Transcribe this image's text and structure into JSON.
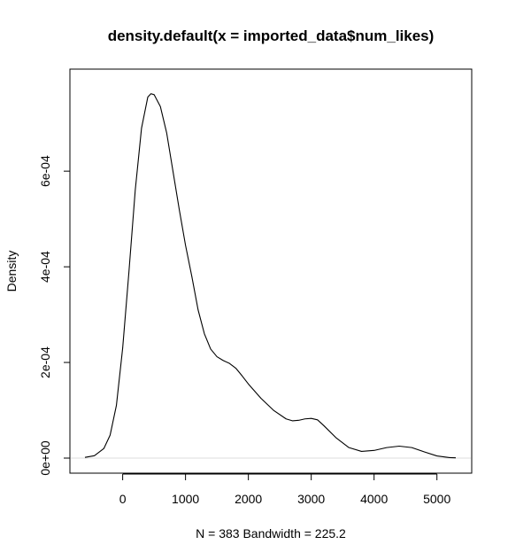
{
  "chart_data": {
    "type": "line",
    "title": "density.default(x = imported_data$num_likes)",
    "xlabel": "N = 383   Bandwidth = 225.2",
    "ylabel": "Density",
    "xlim": [
      -600,
      5300
    ],
    "ylim": [
      0,
      0.00078
    ],
    "x_ticks": [
      0,
      1000,
      2000,
      3000,
      4000,
      5000
    ],
    "x_tick_labels": [
      "0",
      "1000",
      "2000",
      "3000",
      "4000",
      "5000"
    ],
    "y_ticks": [
      0,
      0.0002,
      0.0004,
      0.0006
    ],
    "y_tick_labels": [
      "0e+00",
      "2e-04",
      "4e-04",
      "6e-04"
    ],
    "grid": false,
    "legend": "none",
    "series": [
      {
        "x": [
          -600,
          -450,
          -300,
          -200,
          -100,
          0,
          100,
          200,
          300,
          400,
          450,
          500,
          600,
          700,
          800,
          900,
          1000,
          1100,
          1200,
          1300,
          1400,
          1500,
          1600,
          1700,
          1800,
          1900,
          2000,
          2200,
          2400,
          2600,
          2700,
          2800,
          2900,
          3000,
          3100,
          3200,
          3400,
          3600,
          3800,
          4000,
          4200,
          4400,
          4600,
          4800,
          5000,
          5200,
          5300
        ],
        "y": [
          1.5e-06,
          5e-06,
          2e-05,
          4.8e-05,
          0.00011,
          0.00023,
          0.00039,
          0.00056,
          0.00069,
          0.000755,
          0.000762,
          0.00076,
          0.000735,
          0.00068,
          0.0006,
          0.00052,
          0.000445,
          0.00038,
          0.00031,
          0.00026,
          0.000228,
          0.000212,
          0.000204,
          0.000198,
          0.000188,
          0.000172,
          0.000155,
          0.000125,
          0.0001,
          8.2e-05,
          7.8e-05,
          7.9e-05,
          8.2e-05,
          8.3e-05,
          8e-05,
          6.8e-05,
          4.2e-05,
          2.2e-05,
          1.4e-05,
          1.6e-05,
          2.2e-05,
          2.5e-05,
          2.2e-05,
          1.3e-05,
          4.5e-06,
          1.1e-06,
          5e-07
        ]
      }
    ]
  }
}
